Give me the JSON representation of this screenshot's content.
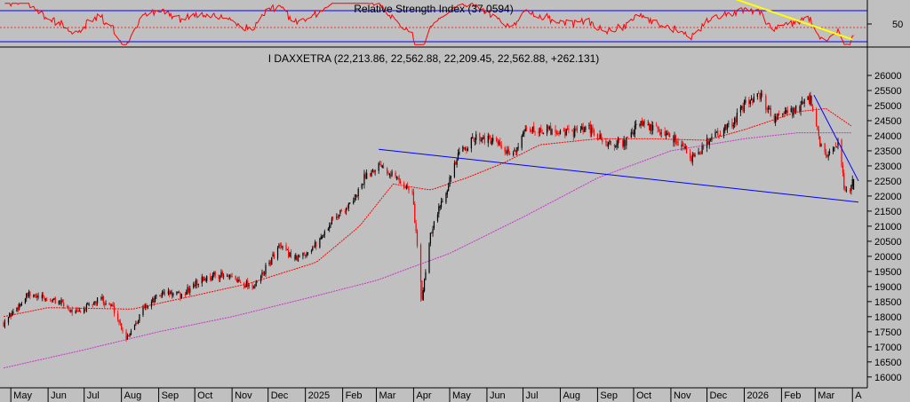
{
  "chart_data": [
    {
      "type": "line",
      "title": "Relative Strength Index (37.0594)",
      "yticks": [
        50
      ],
      "ylim": [
        20,
        80
      ],
      "reference_lines": [
        70,
        50,
        30
      ],
      "colors": {
        "rsi": "#ff0000",
        "bands": "#0000ff",
        "trendline": "#ffff00"
      },
      "trendline": {
        "from": [
          "2025-12-24",
          84
        ],
        "to": [
          "2026-04-01",
          29
        ]
      }
    },
    {
      "type": "candlestick",
      "title": "I DAXXETRA (22,213.86, 22,562.88, 22,209.45, 22,562.88, +262.131)",
      "ylim": [
        15700,
        26500
      ],
      "yticks": [
        16000,
        16500,
        17000,
        17500,
        18000,
        18500,
        19000,
        19500,
        20000,
        20500,
        21000,
        21500,
        22000,
        22500,
        23000,
        23500,
        24000,
        24500,
        25000,
        25500,
        26000
      ],
      "xticks": [
        "May",
        "Jun",
        "Jul",
        "Aug",
        "Sep",
        "Oct",
        "Nov",
        "Dec",
        "2025",
        "Feb",
        "Mar",
        "Apr",
        "May",
        "Jun",
        "Jul",
        "Aug",
        "Sep",
        "Oct",
        "Nov",
        "Dec",
        "2026",
        "Feb",
        "Mar",
        "A"
      ],
      "last": {
        "open": 22213.86,
        "high": 22562.88,
        "low": 22209.45,
        "close": 22562.88,
        "change": 262.131
      },
      "approx_close_path": [
        {
          "x": "2024-04-25",
          "y": 17800
        },
        {
          "x": "2024-05-15",
          "y": 18700
        },
        {
          "x": "2024-06-10",
          "y": 18500
        },
        {
          "x": "2024-06-25",
          "y": 18100
        },
        {
          "x": "2024-07-15",
          "y": 18600
        },
        {
          "x": "2024-07-25",
          "y": 18300
        },
        {
          "x": "2024-08-05",
          "y": 17300
        },
        {
          "x": "2024-08-20",
          "y": 18300
        },
        {
          "x": "2024-09-05",
          "y": 18800
        },
        {
          "x": "2024-09-20",
          "y": 18700
        },
        {
          "x": "2024-10-05",
          "y": 19200
        },
        {
          "x": "2024-10-20",
          "y": 19400
        },
        {
          "x": "2024-11-05",
          "y": 19200
        },
        {
          "x": "2024-11-20",
          "y": 19000
        },
        {
          "x": "2024-12-10",
          "y": 20300
        },
        {
          "x": "2024-12-25",
          "y": 19900
        },
        {
          "x": "2025-01-10",
          "y": 20400
        },
        {
          "x": "2025-01-25",
          "y": 21300
        },
        {
          "x": "2025-02-10",
          "y": 21800
        },
        {
          "x": "2025-02-20",
          "y": 22700
        },
        {
          "x": "2025-03-05",
          "y": 23100
        },
        {
          "x": "2025-03-15",
          "y": 22700
        },
        {
          "x": "2025-03-31",
          "y": 22100
        },
        {
          "x": "2025-04-08",
          "y": 18600
        },
        {
          "x": "2025-04-15",
          "y": 20800
        },
        {
          "x": "2025-04-25",
          "y": 21900
        },
        {
          "x": "2025-05-10",
          "y": 23500
        },
        {
          "x": "2025-05-25",
          "y": 24000
        },
        {
          "x": "2025-06-10",
          "y": 23700
        },
        {
          "x": "2025-06-20",
          "y": 23300
        },
        {
          "x": "2025-07-05",
          "y": 24200
        },
        {
          "x": "2025-07-25",
          "y": 24200
        },
        {
          "x": "2025-08-10",
          "y": 24100
        },
        {
          "x": "2025-08-25",
          "y": 24200
        },
        {
          "x": "2025-09-10",
          "y": 23700
        },
        {
          "x": "2025-09-25",
          "y": 23800
        },
        {
          "x": "2025-10-05",
          "y": 24400
        },
        {
          "x": "2025-10-20",
          "y": 24200
        },
        {
          "x": "2025-11-05",
          "y": 23900
        },
        {
          "x": "2025-11-20",
          "y": 23200
        },
        {
          "x": "2025-12-05",
          "y": 24000
        },
        {
          "x": "2025-12-20",
          "y": 24300
        },
        {
          "x": "2026-01-05",
          "y": 25200
        },
        {
          "x": "2026-01-15",
          "y": 25300
        },
        {
          "x": "2026-01-25",
          "y": 24600
        },
        {
          "x": "2026-02-10",
          "y": 24800
        },
        {
          "x": "2026-02-25",
          "y": 25200
        },
        {
          "x": "2026-03-05",
          "y": 23700
        },
        {
          "x": "2026-03-12",
          "y": 23300
        },
        {
          "x": "2026-03-20",
          "y": 23700
        },
        {
          "x": "2026-03-26",
          "y": 22100
        },
        {
          "x": "2026-03-31",
          "y": 22300
        },
        {
          "x": "2026-04-02",
          "y": 22563
        }
      ],
      "approx_ma_short": [
        {
          "x": "2024-04-25",
          "y": 18000
        },
        {
          "x": "2024-06-01",
          "y": 18300
        },
        {
          "x": "2024-08-10",
          "y": 18250
        },
        {
          "x": "2024-10-01",
          "y": 18700
        },
        {
          "x": "2024-11-15",
          "y": 19100
        },
        {
          "x": "2025-01-10",
          "y": 19800
        },
        {
          "x": "2025-02-15",
          "y": 21000
        },
        {
          "x": "2025-03-15",
          "y": 22400
        },
        {
          "x": "2025-04-15",
          "y": 22200
        },
        {
          "x": "2025-05-15",
          "y": 22600
        },
        {
          "x": "2025-06-15",
          "y": 23100
        },
        {
          "x": "2025-07-15",
          "y": 23700
        },
        {
          "x": "2025-09-01",
          "y": 23900
        },
        {
          "x": "2025-10-15",
          "y": 23900
        },
        {
          "x": "2025-12-01",
          "y": 23850
        },
        {
          "x": "2026-01-01",
          "y": 24200
        },
        {
          "x": "2026-02-15",
          "y": 24800
        },
        {
          "x": "2026-03-10",
          "y": 24900
        },
        {
          "x": "2026-04-01",
          "y": 24300
        }
      ],
      "approx_ma_long": [
        {
          "x": "2024-04-25",
          "y": 16300
        },
        {
          "x": "2024-07-01",
          "y": 16900
        },
        {
          "x": "2024-09-01",
          "y": 17500
        },
        {
          "x": "2024-11-01",
          "y": 18000
        },
        {
          "x": "2025-01-01",
          "y": 18600
        },
        {
          "x": "2025-03-01",
          "y": 19200
        },
        {
          "x": "2025-05-01",
          "y": 20100
        },
        {
          "x": "2025-07-01",
          "y": 21300
        },
        {
          "x": "2025-09-01",
          "y": 22600
        },
        {
          "x": "2025-11-01",
          "y": 23500
        },
        {
          "x": "2026-01-01",
          "y": 23900
        },
        {
          "x": "2026-02-15",
          "y": 24100
        },
        {
          "x": "2026-04-01",
          "y": 24100
        }
      ],
      "trendlines": [
        {
          "from": [
            "2025-03-03",
            23550
          ],
          "to": [
            "2026-04-06",
            21800
          ]
        },
        {
          "from": [
            "2026-02-28",
            25350
          ],
          "to": [
            "2026-04-06",
            22500
          ]
        }
      ],
      "colors": {
        "up": "#000000",
        "down": "#ff0000",
        "ma_short": "#ff0000",
        "ma_long": "#cc33cc",
        "trendline": "#0000ff",
        "background": "#c0c0c0"
      }
    }
  ]
}
